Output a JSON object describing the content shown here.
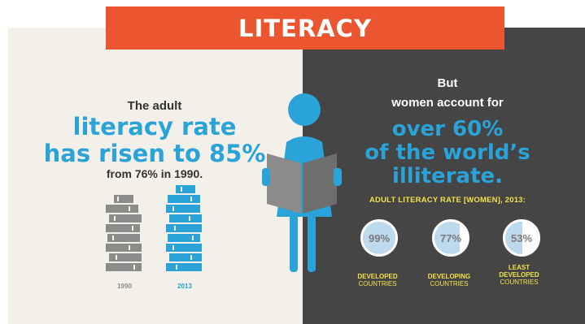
{
  "title": "LITERACY",
  "left": {
    "intro": "The adult",
    "big_line1": "literacy rate",
    "big_line2": "has risen to 85%",
    "sub": "from 76% in 1990.",
    "year_1990": "1990",
    "year_2013": "2013"
  },
  "right": {
    "intro_line1": "But",
    "intro_line2": "women account for",
    "big_line1": "over 60%",
    "big_line2": "of the world’s",
    "big_line3": "illiterate.",
    "stat_title": "ADULT LITERACY RATE [WOMEN], 2013:",
    "stats": [
      {
        "value": "99%",
        "fraction": 0.99,
        "label_line1": "DEVELOPED",
        "label_line2": "COUNTRIES"
      },
      {
        "value": "77%",
        "fraction": 0.77,
        "label_line1": "DEVELOPING",
        "label_line2": "COUNTRIES"
      },
      {
        "value": "53%",
        "fraction": 0.53,
        "label_line1": "LEAST DEVELOPED",
        "label_line2": "COUNTRIES"
      }
    ]
  },
  "colors": {
    "accent_blue": "#29a3d8",
    "banner_orange": "#eb5530",
    "dark_panel": "#454545",
    "light_panel": "#f3efe9",
    "stat_yellow": "#f2e14a",
    "book_grey": "#8c8c8c"
  },
  "icons": {
    "woman": "woman-reading-book-icon",
    "books_1990": "book-stack-icon",
    "books_2013": "book-stack-icon"
  }
}
